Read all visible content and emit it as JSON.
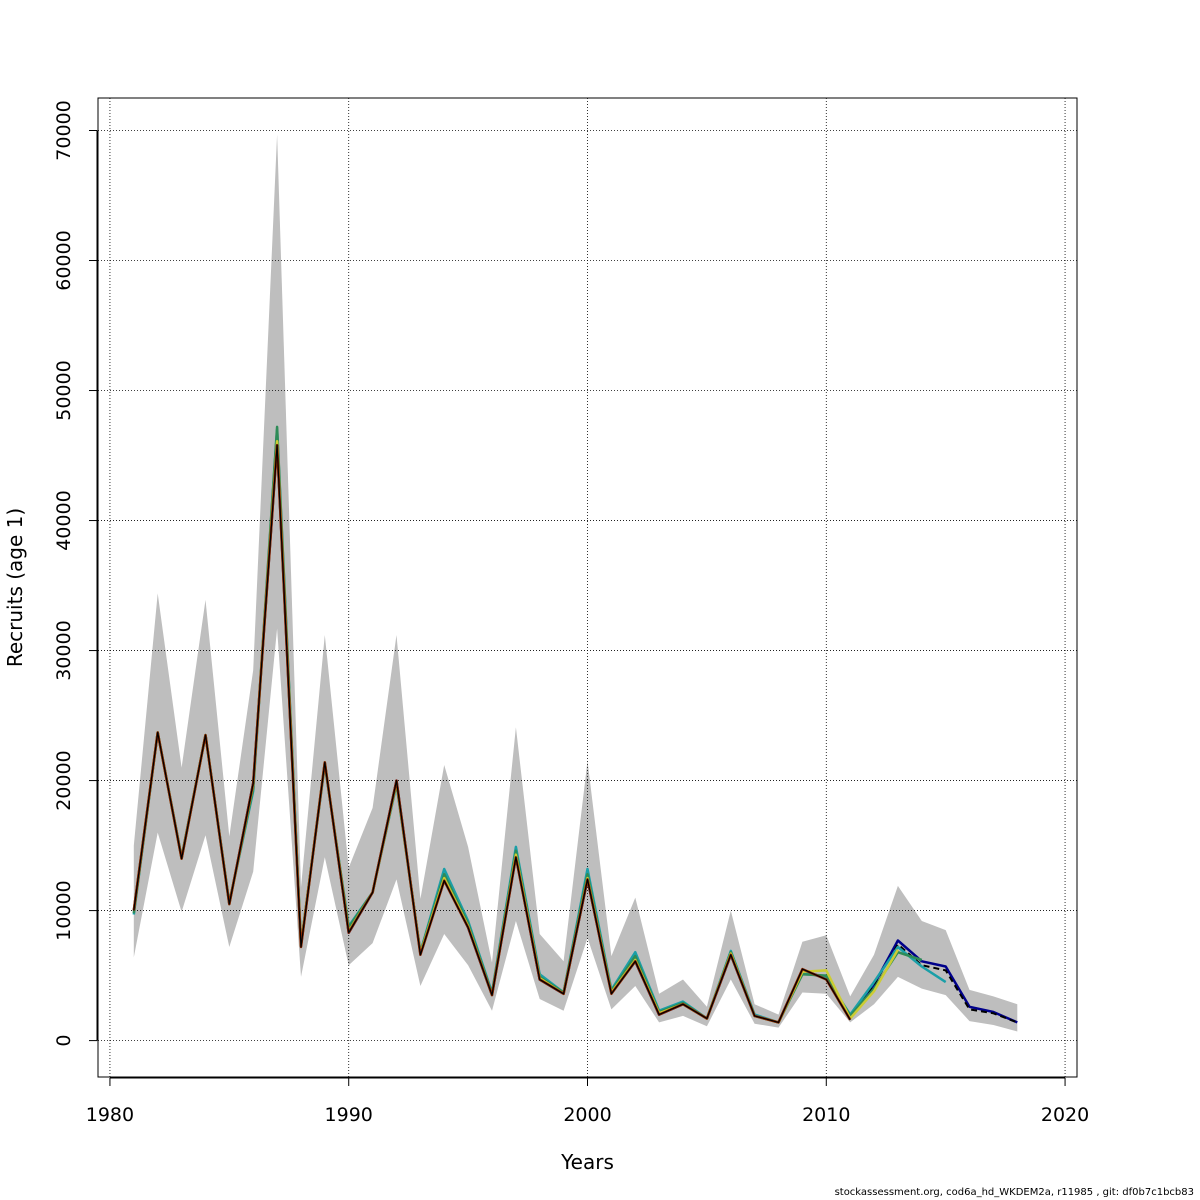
{
  "chart_data": {
    "type": "line",
    "xlabel": "Years",
    "ylabel": "Recruits (age 1)",
    "xlim": [
      1979.5,
      2020.5
    ],
    "ylim": [
      -2800,
      72500
    ],
    "x_ticks": [
      1980,
      1990,
      2000,
      2010,
      2020
    ],
    "y_ticks": [
      0,
      10000,
      20000,
      30000,
      40000,
      50000,
      60000,
      70000
    ],
    "grid": true,
    "confidence_band": {
      "x": [
        1981,
        1982,
        1983,
        1984,
        1985,
        1986,
        1987,
        1988,
        1989,
        1990,
        1991,
        1992,
        1993,
        1994,
        1995,
        1996,
        1997,
        1998,
        1999,
        2000,
        2001,
        2002,
        2003,
        2004,
        2005,
        2006,
        2007,
        2008,
        2009,
        2010,
        2011,
        2012,
        2013,
        2014,
        2015,
        2016,
        2017,
        2018
      ],
      "lower": [
        6400,
        16000,
        9900,
        15800,
        7200,
        13000,
        31700,
        4900,
        14100,
        5800,
        7500,
        12400,
        4200,
        8200,
        5800,
        2300,
        9200,
        3200,
        2300,
        7900,
        2400,
        4200,
        1400,
        1900,
        1100,
        4700,
        1300,
        1000,
        3700,
        3600,
        1400,
        2800,
        4900,
        4000,
        3500,
        1500,
        1200,
        700
      ],
      "upper": [
        15000,
        34400,
        21000,
        33900,
        15700,
        28500,
        69700,
        11800,
        31200,
        13300,
        17900,
        31200,
        10900,
        21200,
        14900,
        6000,
        24100,
        8200,
        6100,
        21500,
        6500,
        11000,
        3600,
        4700,
        2600,
        10000,
        2800,
        2000,
        7600,
        8100,
        3400,
        6600,
        11900,
        9200,
        8500,
        3900,
        3400,
        2800
      ],
      "color": "#bebebe"
    },
    "series": [
      {
        "color": "#00008b",
        "x": [
          1981,
          1982,
          1983,
          1984,
          1985,
          1986,
          1987,
          1988,
          1989,
          1990,
          1991,
          1992,
          1993,
          1994,
          1995,
          1996,
          1997,
          1998,
          1999,
          2000,
          2001,
          2002,
          2003,
          2004,
          2005,
          2006,
          2007,
          2008,
          2009,
          2010,
          2011,
          2012,
          2013,
          2014,
          2015,
          2016,
          2017,
          2018
        ],
        "values": [
          10000,
          23700,
          14000,
          23500,
          10500,
          19800,
          45900,
          7300,
          21400,
          8300,
          11400,
          20000,
          6700,
          12400,
          8700,
          3500,
          14200,
          4700,
          3600,
          12400,
          3700,
          6100,
          2000,
          2800,
          1700,
          6600,
          1900,
          1400,
          5400,
          4800,
          1900,
          4300,
          7700,
          6100,
          5700,
          2600,
          2200,
          1400
        ]
      },
      {
        "color": "#000000",
        "dashed": true,
        "x": [
          1981,
          1982,
          1983,
          1984,
          1985,
          1986,
          1987,
          1988,
          1989,
          1990,
          1991,
          1992,
          1993,
          1994,
          1995,
          1996,
          1997,
          1998,
          1999,
          2000,
          2001,
          2002,
          2003,
          2004,
          2005,
          2006,
          2007,
          2008,
          2009,
          2010,
          2011,
          2012,
          2013,
          2014,
          2015,
          2016,
          2017,
          2018
        ],
        "values": [
          10000,
          23700,
          14000,
          23500,
          10500,
          19800,
          45900,
          7300,
          21400,
          8300,
          11400,
          20000,
          6700,
          12400,
          8700,
          3500,
          14200,
          4700,
          3600,
          12400,
          3700,
          6100,
          2000,
          2800,
          1700,
          6600,
          1900,
          1400,
          5400,
          4800,
          1900,
          4300,
          7400,
          5800,
          5400,
          2400,
          2100,
          1400
        ]
      },
      {
        "color": "#1a9fa8",
        "x": [
          1981,
          1982,
          1983,
          1984,
          1985,
          1986,
          1987,
          1988,
          1989,
          1990,
          1991,
          1992,
          1993,
          1994,
          1995,
          1996,
          1997,
          1998,
          1999,
          2000,
          2001,
          2002,
          2003,
          2004,
          2005,
          2006,
          2007,
          2008,
          2009,
          2010,
          2011,
          2012,
          2013,
          2014,
          2015
        ],
        "values": [
          9700,
          23700,
          14100,
          23500,
          10600,
          19200,
          47000,
          7400,
          21200,
          8800,
          11400,
          19700,
          6800,
          13200,
          9200,
          3700,
          14900,
          5100,
          3700,
          13200,
          3900,
          6800,
          2300,
          3000,
          1700,
          6900,
          2000,
          1400,
          5300,
          4800,
          2000,
          4500,
          7200,
          5700,
          4500
        ]
      },
      {
        "color": "#2e8b57",
        "x": [
          1981,
          1982,
          1983,
          1984,
          1985,
          1986,
          1987,
          1988,
          1989,
          1990,
          1991,
          1992,
          1993,
          1994,
          1995,
          1996,
          1997,
          1998,
          1999,
          2000,
          2001,
          2002,
          2003,
          2004,
          2005,
          2006,
          2007,
          2008,
          2009,
          2010,
          2011,
          2012,
          2013,
          2014
        ],
        "values": [
          9800,
          23700,
          14100,
          23500,
          10600,
          19400,
          47200,
          7400,
          21300,
          8700,
          11400,
          19800,
          6800,
          12800,
          9000,
          3600,
          14600,
          4900,
          3700,
          12800,
          3800,
          6500,
          2200,
          2900,
          1700,
          6800,
          1900,
          1400,
          5100,
          5000,
          1900,
          4000,
          6800,
          6200
        ]
      },
      {
        "color": "#cccc33",
        "x": [
          1981,
          1982,
          1983,
          1984,
          1985,
          1986,
          1987,
          1988,
          1989,
          1990,
          1991,
          1992,
          1993,
          1994,
          1995,
          1996,
          1997,
          1998,
          1999,
          2000,
          2001,
          2002,
          2003,
          2004,
          2005,
          2006,
          2007,
          2008,
          2009,
          2010,
          2011,
          2012,
          2013
        ],
        "values": [
          10000,
          23700,
          14000,
          23500,
          10500,
          19700,
          46100,
          7300,
          21400,
          8400,
          11400,
          19900,
          6700,
          12500,
          8800,
          3500,
          14300,
          4800,
          3600,
          12500,
          3700,
          6200,
          2100,
          2800,
          1700,
          6700,
          1900,
          1400,
          5300,
          5400,
          1700,
          3800,
          7000
        ]
      },
      {
        "color": "#8b2500",
        "x": [
          1981,
          1982,
          1983,
          1984,
          1985,
          1986,
          1987,
          1988,
          1989,
          1990,
          1991,
          1992,
          1993,
          1994,
          1995,
          1996,
          1997,
          1998,
          1999,
          2000,
          2001,
          2002,
          2003,
          2004,
          2005,
          2006,
          2007,
          2008,
          2009,
          2010,
          2011
        ],
        "values": [
          10000,
          23700,
          14000,
          23500,
          10500,
          19800,
          45800,
          7200,
          21400,
          8300,
          11400,
          20000,
          6600,
          12300,
          8700,
          3500,
          14100,
          4700,
          3600,
          12400,
          3600,
          6100,
          2000,
          2800,
          1700,
          6600,
          1900,
          1400,
          5500,
          4700,
          1600
        ]
      },
      {
        "color": "#000000",
        "width": 1.2,
        "x": [
          1981,
          1982,
          1983,
          1984,
          1985,
          1986,
          1987,
          1988,
          1989,
          1990,
          1991,
          1992,
          1993,
          1994,
          1995,
          1996,
          1997,
          1998,
          1999,
          2000,
          2001,
          2002,
          2003,
          2004,
          2005,
          2006,
          2007,
          2008,
          2009,
          2010,
          2011
        ],
        "values": [
          10000,
          23700,
          14000,
          23500,
          10500,
          19800,
          45800,
          7200,
          21400,
          8300,
          11400,
          20000,
          6600,
          12300,
          8700,
          3500,
          14100,
          4700,
          3600,
          12400,
          3600,
          6100,
          2000,
          2800,
          1700,
          6600,
          1900,
          1400,
          5500,
          4700,
          1600
        ]
      }
    ]
  },
  "footer": "stockassessment.org, cod6a_hd_WKDEM2a, r11985 , git: df0b7c1bcb83"
}
